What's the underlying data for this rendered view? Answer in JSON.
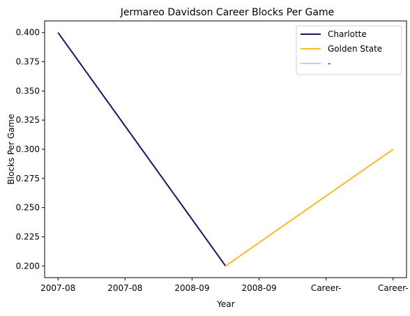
{
  "chart_data": {
    "type": "line",
    "title": "Jermareo Davidson Career Blocks Per Game",
    "xlabel": "Year",
    "ylabel": "Blocks Per Game",
    "categories": [
      "2007-08",
      "2007-08",
      "2008-09",
      "2008-09",
      "Career-",
      "Career-"
    ],
    "x_tick_positions": [
      0,
      1,
      2,
      3,
      4,
      5
    ],
    "ylim": [
      0.19,
      0.41
    ],
    "yticks": [
      0.2,
      0.225,
      0.25,
      0.275,
      0.3,
      0.325,
      0.35,
      0.375,
      0.4
    ],
    "ytick_labels": [
      "0.200",
      "0.225",
      "0.250",
      "0.275",
      "0.300",
      "0.325",
      "0.350",
      "0.375",
      "0.400"
    ],
    "grid": false,
    "legend_position": "top-right",
    "series": [
      {
        "name": "Charlotte",
        "color": "#1d1160",
        "points": [
          [
            0,
            0.4
          ],
          [
            2.5,
            0.2
          ]
        ]
      },
      {
        "name": "Golden State",
        "color": "#fdb927",
        "points": [
          [
            2.5,
            0.2
          ],
          [
            5,
            0.3
          ]
        ]
      },
      {
        "name": "-",
        "color": "#c4ced4",
        "points": []
      }
    ]
  }
}
